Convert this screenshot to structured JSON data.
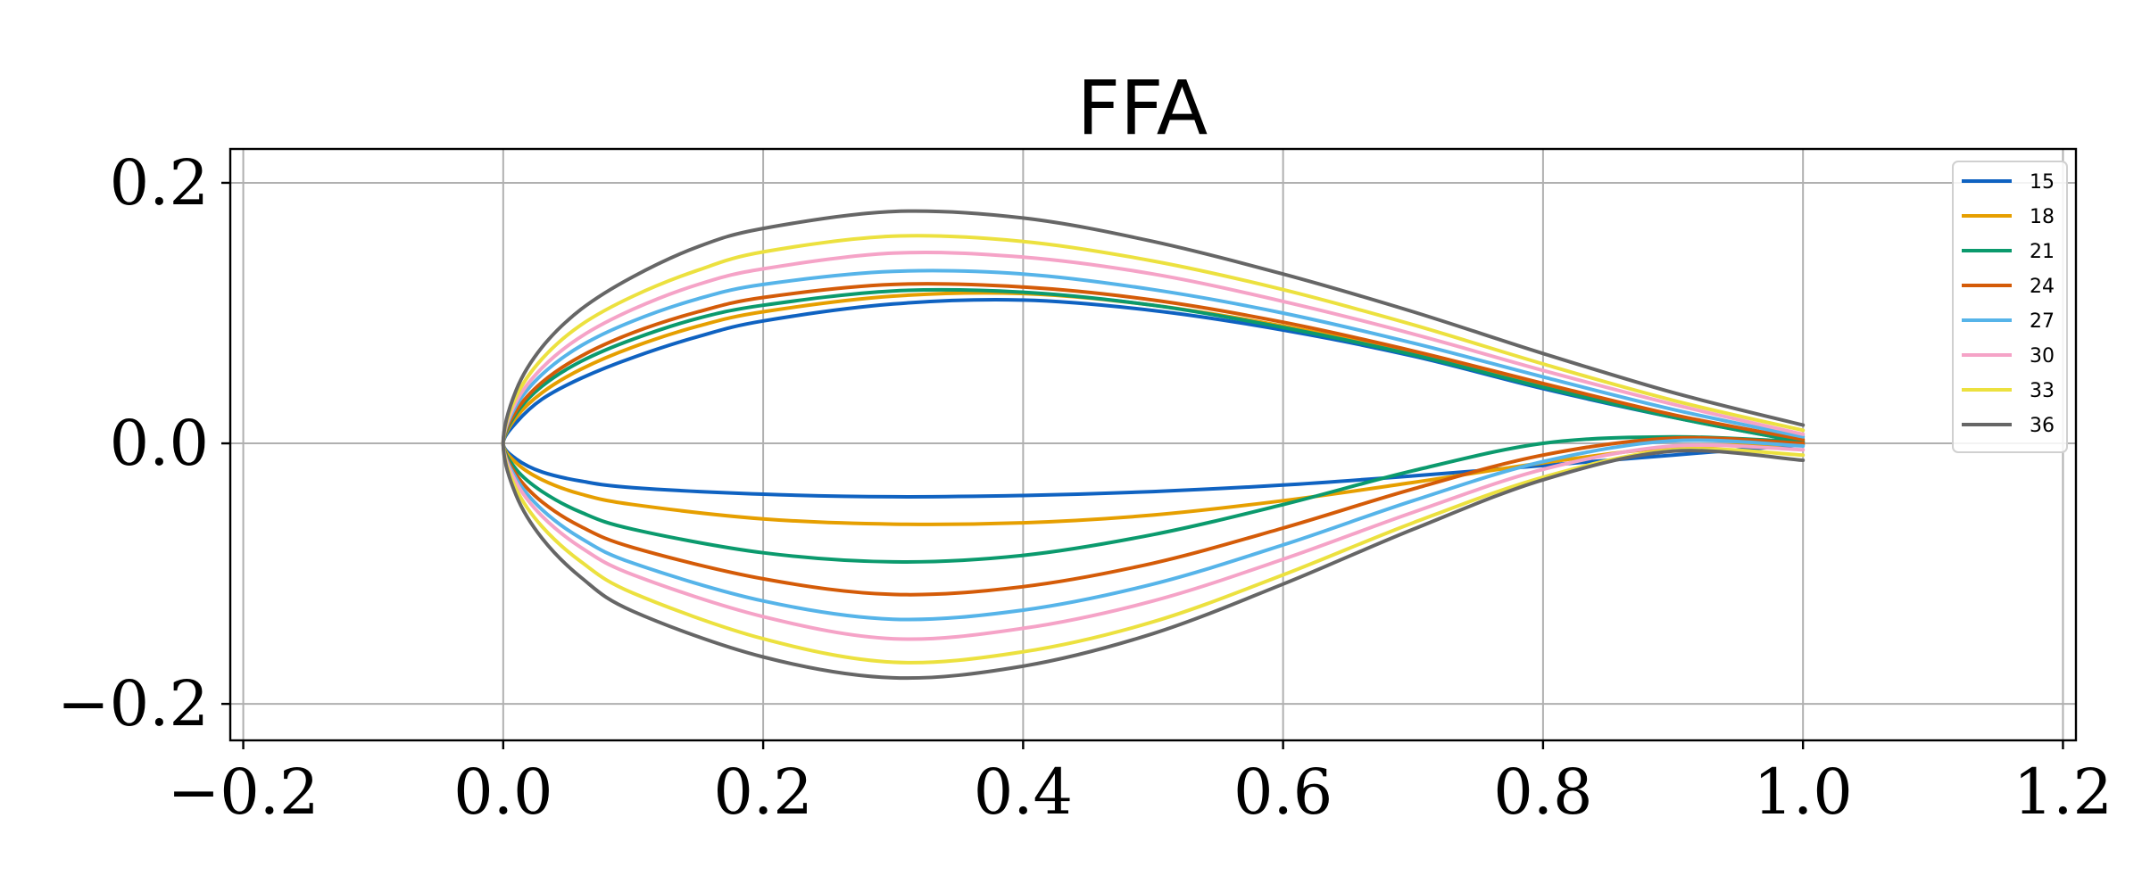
{
  "chart_data": {
    "type": "line",
    "title": "FFA",
    "xlabel": "",
    "ylabel": "",
    "xlim": [
      -0.21,
      1.21
    ],
    "ylim": [
      -0.228,
      0.226
    ],
    "xticks": [
      -0.2,
      0.0,
      0.2,
      0.4,
      0.6,
      0.8,
      1.0,
      1.2
    ],
    "xtick_labels": [
      "−0.2",
      "0.0",
      "0.2",
      "0.4",
      "0.6",
      "0.8",
      "1.0",
      "1.2"
    ],
    "yticks": [
      -0.2,
      0.0,
      0.2
    ],
    "ytick_labels": [
      "−0.2",
      "0.0",
      "0.2"
    ],
    "grid": true,
    "legend_position": "top-right",
    "series": [
      {
        "name": "15",
        "color": "#0f62c1",
        "upper": [
          [
            0,
            0
          ],
          [
            0.01,
            0.016
          ],
          [
            0.03,
            0.034
          ],
          [
            0.06,
            0.05
          ],
          [
            0.1,
            0.066
          ],
          [
            0.15,
            0.082
          ],
          [
            0.2,
            0.094
          ],
          [
            0.3,
            0.107
          ],
          [
            0.4,
            0.11
          ],
          [
            0.5,
            0.102
          ],
          [
            0.6,
            0.087
          ],
          [
            0.7,
            0.067
          ],
          [
            0.8,
            0.042
          ],
          [
            0.9,
            0.02
          ],
          [
            1.0,
            0.001
          ]
        ],
        "lower": [
          [
            0,
            0
          ],
          [
            0.01,
            -0.012
          ],
          [
            0.03,
            -0.022
          ],
          [
            0.06,
            -0.029
          ],
          [
            0.1,
            -0.034
          ],
          [
            0.2,
            -0.039
          ],
          [
            0.3,
            -0.041
          ],
          [
            0.4,
            -0.04
          ],
          [
            0.5,
            -0.037
          ],
          [
            0.6,
            -0.032
          ],
          [
            0.7,
            -0.025
          ],
          [
            0.8,
            -0.017
          ],
          [
            0.9,
            -0.009
          ],
          [
            1.0,
            -0.001
          ]
        ]
      },
      {
        "name": "18",
        "color": "#e69f00",
        "upper": [
          [
            0,
            0
          ],
          [
            0.01,
            0.02
          ],
          [
            0.03,
            0.039
          ],
          [
            0.06,
            0.057
          ],
          [
            0.1,
            0.074
          ],
          [
            0.15,
            0.09
          ],
          [
            0.2,
            0.101
          ],
          [
            0.3,
            0.113
          ],
          [
            0.4,
            0.115
          ],
          [
            0.5,
            0.106
          ],
          [
            0.6,
            0.09
          ],
          [
            0.7,
            0.069
          ],
          [
            0.8,
            0.044
          ],
          [
            0.9,
            0.021
          ],
          [
            1.0,
            0.002
          ]
        ],
        "lower": [
          [
            0,
            0
          ],
          [
            0.01,
            -0.015
          ],
          [
            0.03,
            -0.028
          ],
          [
            0.06,
            -0.039
          ],
          [
            0.1,
            -0.047
          ],
          [
            0.2,
            -0.058
          ],
          [
            0.3,
            -0.062
          ],
          [
            0.4,
            -0.061
          ],
          [
            0.5,
            -0.055
          ],
          [
            0.6,
            -0.044
          ],
          [
            0.7,
            -0.03
          ],
          [
            0.8,
            -0.015
          ],
          [
            0.9,
            -0.003
          ],
          [
            1.0,
            -0.001
          ]
        ]
      },
      {
        "name": "21",
        "color": "#0b9a6d",
        "upper": [
          [
            0,
            0
          ],
          [
            0.01,
            0.023
          ],
          [
            0.03,
            0.044
          ],
          [
            0.06,
            0.063
          ],
          [
            0.1,
            0.08
          ],
          [
            0.15,
            0.096
          ],
          [
            0.2,
            0.106
          ],
          [
            0.3,
            0.117
          ],
          [
            0.4,
            0.116
          ],
          [
            0.5,
            0.106
          ],
          [
            0.6,
            0.089
          ],
          [
            0.7,
            0.068
          ],
          [
            0.8,
            0.043
          ],
          [
            0.9,
            0.02
          ],
          [
            1.0,
            0.001
          ]
        ],
        "lower": [
          [
            0,
            0
          ],
          [
            0.01,
            -0.02
          ],
          [
            0.03,
            -0.037
          ],
          [
            0.06,
            -0.053
          ],
          [
            0.1,
            -0.066
          ],
          [
            0.2,
            -0.084
          ],
          [
            0.3,
            -0.091
          ],
          [
            0.4,
            -0.086
          ],
          [
            0.5,
            -0.07
          ],
          [
            0.6,
            -0.047
          ],
          [
            0.7,
            -0.021
          ],
          [
            0.8,
            0.0
          ],
          [
            0.9,
            0.005
          ],
          [
            1.0,
            0.001
          ]
        ]
      },
      {
        "name": "24",
        "color": "#d45b08",
        "upper": [
          [
            0,
            0
          ],
          [
            0.01,
            0.025
          ],
          [
            0.03,
            0.047
          ],
          [
            0.06,
            0.067
          ],
          [
            0.1,
            0.085
          ],
          [
            0.15,
            0.101
          ],
          [
            0.2,
            0.112
          ],
          [
            0.3,
            0.122
          ],
          [
            0.4,
            0.12
          ],
          [
            0.5,
            0.11
          ],
          [
            0.6,
            0.093
          ],
          [
            0.7,
            0.071
          ],
          [
            0.8,
            0.046
          ],
          [
            0.9,
            0.022
          ],
          [
            1.0,
            0.003
          ]
        ],
        "lower": [
          [
            0,
            0
          ],
          [
            0.01,
            -0.024
          ],
          [
            0.03,
            -0.045
          ],
          [
            0.06,
            -0.064
          ],
          [
            0.1,
            -0.08
          ],
          [
            0.2,
            -0.104
          ],
          [
            0.3,
            -0.116
          ],
          [
            0.4,
            -0.11
          ],
          [
            0.5,
            -0.092
          ],
          [
            0.6,
            -0.065
          ],
          [
            0.7,
            -0.035
          ],
          [
            0.8,
            -0.009
          ],
          [
            0.9,
            0.004
          ],
          [
            1.0,
            0.0
          ]
        ]
      },
      {
        "name": "27",
        "color": "#56b4e9",
        "upper": [
          [
            0,
            0
          ],
          [
            0.01,
            0.029
          ],
          [
            0.03,
            0.053
          ],
          [
            0.06,
            0.075
          ],
          [
            0.1,
            0.094
          ],
          [
            0.15,
            0.111
          ],
          [
            0.2,
            0.122
          ],
          [
            0.3,
            0.132
          ],
          [
            0.4,
            0.13
          ],
          [
            0.5,
            0.118
          ],
          [
            0.6,
            0.1
          ],
          [
            0.7,
            0.077
          ],
          [
            0.8,
            0.051
          ],
          [
            0.9,
            0.026
          ],
          [
            1.0,
            0.005
          ]
        ],
        "lower": [
          [
            0,
            0
          ],
          [
            0.01,
            -0.027
          ],
          [
            0.03,
            -0.051
          ],
          [
            0.06,
            -0.073
          ],
          [
            0.1,
            -0.092
          ],
          [
            0.2,
            -0.121
          ],
          [
            0.3,
            -0.135
          ],
          [
            0.4,
            -0.128
          ],
          [
            0.5,
            -0.108
          ],
          [
            0.6,
            -0.078
          ],
          [
            0.7,
            -0.044
          ],
          [
            0.8,
            -0.014
          ],
          [
            0.9,
            0.002
          ],
          [
            1.0,
            -0.002
          ]
        ]
      },
      {
        "name": "30",
        "color": "#f5a3c7",
        "upper": [
          [
            0,
            0
          ],
          [
            0.01,
            0.032
          ],
          [
            0.03,
            0.058
          ],
          [
            0.06,
            0.082
          ],
          [
            0.1,
            0.103
          ],
          [
            0.15,
            0.122
          ],
          [
            0.2,
            0.134
          ],
          [
            0.3,
            0.146
          ],
          [
            0.4,
            0.143
          ],
          [
            0.5,
            0.13
          ],
          [
            0.6,
            0.109
          ],
          [
            0.7,
            0.084
          ],
          [
            0.8,
            0.056
          ],
          [
            0.9,
            0.03
          ],
          [
            1.0,
            0.007
          ]
        ],
        "lower": [
          [
            0,
            0
          ],
          [
            0.01,
            -0.03
          ],
          [
            0.03,
            -0.056
          ],
          [
            0.06,
            -0.08
          ],
          [
            0.1,
            -0.101
          ],
          [
            0.2,
            -0.133
          ],
          [
            0.3,
            -0.15
          ],
          [
            0.4,
            -0.142
          ],
          [
            0.5,
            -0.121
          ],
          [
            0.6,
            -0.089
          ],
          [
            0.7,
            -0.053
          ],
          [
            0.8,
            -0.02
          ],
          [
            0.9,
            -0.002
          ],
          [
            1.0,
            -0.005
          ]
        ]
      },
      {
        "name": "33",
        "color": "#ece13f",
        "upper": [
          [
            0,
            0
          ],
          [
            0.01,
            0.036
          ],
          [
            0.03,
            0.065
          ],
          [
            0.06,
            0.091
          ],
          [
            0.1,
            0.113
          ],
          [
            0.15,
            0.133
          ],
          [
            0.2,
            0.147
          ],
          [
            0.3,
            0.159
          ],
          [
            0.4,
            0.155
          ],
          [
            0.5,
            0.14
          ],
          [
            0.6,
            0.118
          ],
          [
            0.7,
            0.091
          ],
          [
            0.8,
            0.061
          ],
          [
            0.9,
            0.033
          ],
          [
            1.0,
            0.01
          ]
        ],
        "lower": [
          [
            0,
            0
          ],
          [
            0.01,
            -0.035
          ],
          [
            0.03,
            -0.064
          ],
          [
            0.06,
            -0.091
          ],
          [
            0.1,
            -0.115
          ],
          [
            0.2,
            -0.15
          ],
          [
            0.3,
            -0.168
          ],
          [
            0.4,
            -0.16
          ],
          [
            0.5,
            -0.137
          ],
          [
            0.6,
            -0.101
          ],
          [
            0.7,
            -0.061
          ],
          [
            0.8,
            -0.026
          ],
          [
            0.9,
            -0.005
          ],
          [
            1.0,
            -0.009
          ]
        ]
      },
      {
        "name": "36",
        "color": "#666666",
        "upper": [
          [
            0,
            0
          ],
          [
            0.01,
            0.041
          ],
          [
            0.03,
            0.074
          ],
          [
            0.06,
            0.103
          ],
          [
            0.1,
            0.128
          ],
          [
            0.15,
            0.151
          ],
          [
            0.2,
            0.165
          ],
          [
            0.3,
            0.178
          ],
          [
            0.4,
            0.173
          ],
          [
            0.5,
            0.155
          ],
          [
            0.6,
            0.13
          ],
          [
            0.7,
            0.101
          ],
          [
            0.8,
            0.069
          ],
          [
            0.9,
            0.039
          ],
          [
            1.0,
            0.014
          ]
        ],
        "lower": [
          [
            0,
            0
          ],
          [
            0.01,
            -0.04
          ],
          [
            0.03,
            -0.073
          ],
          [
            0.06,
            -0.103
          ],
          [
            0.1,
            -0.129
          ],
          [
            0.2,
            -0.164
          ],
          [
            0.3,
            -0.18
          ],
          [
            0.4,
            -0.171
          ],
          [
            0.5,
            -0.146
          ],
          [
            0.6,
            -0.108
          ],
          [
            0.7,
            -0.066
          ],
          [
            0.8,
            -0.028
          ],
          [
            0.9,
            -0.006
          ],
          [
            1.0,
            -0.013
          ]
        ]
      }
    ]
  }
}
